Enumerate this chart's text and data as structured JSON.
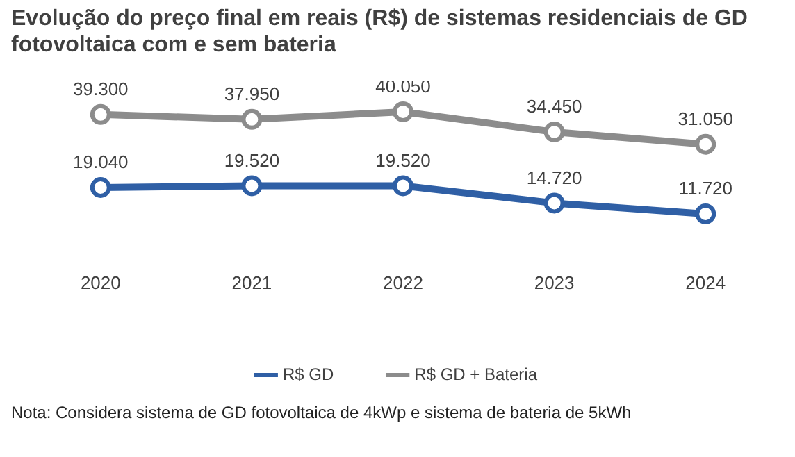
{
  "chart_data": {
    "type": "line",
    "title": "Evolução do preço final em reais (R$) de sistemas residenciais de GD fotovoltaica com e sem bateria",
    "categories": [
      "2020",
      "2021",
      "2022",
      "2023",
      "2024"
    ],
    "series": [
      {
        "name": "R$ GD",
        "color": "#2f5fa5",
        "values": [
          19040,
          19520,
          19520,
          14720,
          11720
        ],
        "value_labels": [
          "19.040",
          "19.520",
          "19.520",
          "14.720",
          "11.720"
        ]
      },
      {
        "name": "R$ GD + Bateria",
        "color": "#8c8c8c",
        "values": [
          39300,
          37950,
          40050,
          34450,
          31050
        ],
        "value_labels": [
          "39.300",
          "37.950",
          "40.050",
          "34.450",
          "31.050"
        ]
      }
    ],
    "marker": "circle",
    "legend": "bottom",
    "grid": false,
    "annotations": [
      "Nota: Considera sistema de GD fotovoltaica de 4kWp e sistema de bateria de 5kWh"
    ]
  }
}
